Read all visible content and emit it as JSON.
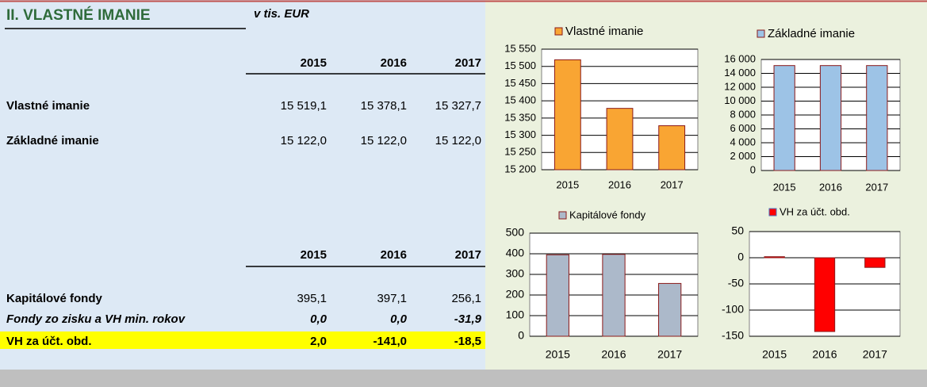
{
  "title": "II. VLASTNÉ IMANIE",
  "unit": "v tis. EUR",
  "table1": {
    "header": [
      "2015",
      "2016",
      "2017"
    ],
    "rows": [
      [
        "Vlastné imanie",
        "15 519,1",
        "15 378,1",
        "15 327,7"
      ],
      [
        "Základné imanie",
        "15 122,0",
        "15 122,0",
        "15 122,0"
      ]
    ]
  },
  "table2": {
    "header": [
      "2015",
      "2016",
      "2017"
    ],
    "rows": [
      [
        "Kapitálové fondy",
        "395,1",
        "397,1",
        "256,1"
      ],
      [
        "Fondy zo zisku a VH min. rokov",
        "0,0",
        "0,0",
        "-31,9"
      ],
      [
        "VH za účt. obd.",
        "2,0",
        "-141,0",
        "-18,5"
      ]
    ]
  },
  "chart_data": [
    {
      "type": "bar",
      "categories": [
        "2015",
        "2016",
        "2017"
      ],
      "series": [
        {
          "name": "Vlastné imanie",
          "color": "#f9a533",
          "values": [
            15519.1,
            15378.1,
            15327.7
          ]
        }
      ],
      "ylim": [
        15200,
        15550
      ],
      "yticks": [
        {
          "value": 15200,
          "label": "15 200"
        },
        {
          "value": 15250,
          "label": "15 250"
        },
        {
          "value": 15300,
          "label": "15 300"
        },
        {
          "value": 15350,
          "label": "15 350"
        },
        {
          "value": 15400,
          "label": "15 400"
        },
        {
          "value": 15450,
          "label": "15 450"
        },
        {
          "value": 15500,
          "label": "15 500"
        },
        {
          "value": 15550,
          "label": "15 550"
        }
      ],
      "grid": true
    },
    {
      "type": "bar",
      "categories": [
        "2015",
        "2016",
        "2017"
      ],
      "series": [
        {
          "name": "Základné imanie",
          "color": "#9dc3e6",
          "values": [
            15122,
            15122,
            15122
          ]
        }
      ],
      "ylim": [
        0,
        16000
      ],
      "yticks": [
        0,
        {
          "value": 2000,
          "label": "2 000"
        },
        {
          "value": 4000,
          "label": "4 000"
        },
        {
          "value": 6000,
          "label": "6 000"
        },
        {
          "value": 8000,
          "label": "8 000"
        },
        {
          "value": 10000,
          "label": "10 000"
        },
        {
          "value": 12000,
          "label": "12 000"
        },
        {
          "value": 14000,
          "label": "14 000"
        },
        {
          "value": 16000,
          "label": "16 000"
        }
      ],
      "grid": true
    },
    {
      "type": "bar",
      "categories": [
        "2015",
        "2016",
        "2017"
      ],
      "series": [
        {
          "name": "Kapitálové fondy",
          "color": "#acb9ca",
          "values": [
            395.1,
            397.1,
            256.1
          ]
        }
      ],
      "ylim": [
        0,
        500
      ],
      "yticks": [
        0,
        100,
        200,
        300,
        400,
        500
      ],
      "grid": true
    },
    {
      "type": "bar",
      "categories": [
        "2015",
        "2016",
        "2017"
      ],
      "series": [
        {
          "name": "VH za účt. obd.",
          "color": "#ff0000",
          "values": [
            2,
            -141,
            -18.5
          ]
        }
      ],
      "ylim": [
        -150,
        50
      ],
      "yticks": [
        -150,
        -100,
        -50,
        0,
        50
      ],
      "grid": true
    }
  ]
}
